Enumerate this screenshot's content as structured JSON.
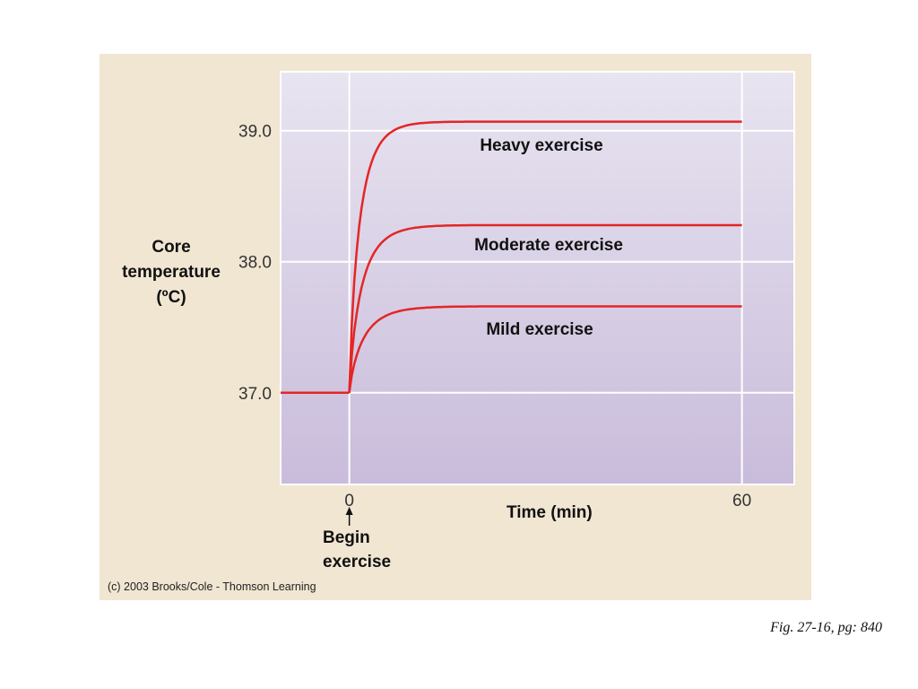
{
  "caption": "Fig. 27-16, pg: 840",
  "copyright": "(c) 2003 Brooks/Cole - Thomson Learning",
  "colors": {
    "panel_background": "#f0e6d2",
    "plot_top": "#e8e4f0",
    "plot_bottom": "#c9bcdb",
    "gridline": "#ffffff",
    "curve": "#e32626"
  },
  "chart_data": {
    "type": "line",
    "title": "",
    "xlabel": "Time (min)",
    "ylabel_lines": [
      "Core",
      "temperature",
      "(ºC)"
    ],
    "xlim": [
      -10.5,
      68
    ],
    "ylim": [
      36.3,
      39.45
    ],
    "x_ticks": [
      {
        "value": 0,
        "label": "0"
      },
      {
        "value": 60,
        "label": "60"
      }
    ],
    "y_ticks": [
      {
        "value": 37.0,
        "label": "37.0"
      },
      {
        "value": 38.0,
        "label": "38.0"
      },
      {
        "value": 39.0,
        "label": "39.0"
      }
    ],
    "grid": true,
    "baseline": {
      "x_start": -10.5,
      "x_end": 0,
      "value": 37.0
    },
    "series": [
      {
        "name": "Heavy exercise",
        "start": 37.0,
        "plateau": 39.07,
        "end_x": 60
      },
      {
        "name": "Moderate exercise",
        "start": 37.0,
        "plateau": 38.28,
        "end_x": 60
      },
      {
        "name": "Mild exercise",
        "start": 37.0,
        "plateau": 37.66,
        "end_x": 60
      }
    ],
    "annotations": [
      {
        "text": "Begin",
        "text2": "exercise",
        "points_to_x": 0
      }
    ]
  }
}
